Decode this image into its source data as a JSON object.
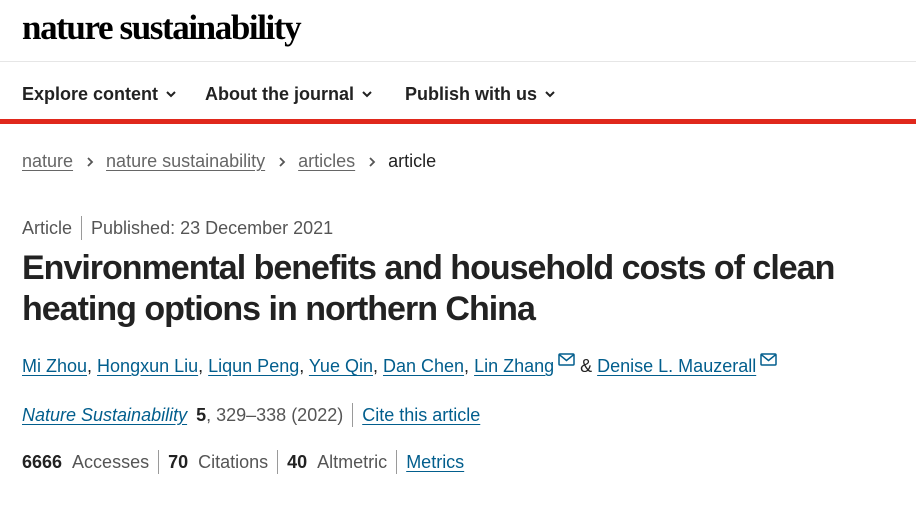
{
  "brand": {
    "logo": "nature sustainability"
  },
  "nav": {
    "items": [
      {
        "label": "Explore content"
      },
      {
        "label": "About the journal"
      },
      {
        "label": "Publish with us"
      }
    ]
  },
  "breadcrumb": {
    "items": [
      "nature",
      "nature sustainability",
      "articles"
    ],
    "current": "article"
  },
  "article": {
    "type": "Article",
    "published": "Published: 23 December 2021",
    "title": "Environmental benefits and household costs of clean heating options in northern China",
    "authors": [
      {
        "name": "Mi Zhou",
        "after": ", "
      },
      {
        "name": "Hongxun Liu",
        "after": ", "
      },
      {
        "name": "Liqun Peng",
        "after": ", "
      },
      {
        "name": "Yue Qin",
        "after": ", "
      },
      {
        "name": "Dan Chen",
        "after": ", "
      },
      {
        "name": "Lin Zhang",
        "after": " & "
      },
      {
        "name": "Denise L. Mauzerall",
        "after": ""
      }
    ],
    "author_amp": "&"
  },
  "citation": {
    "journal": "Nature Sustainability",
    "volume": "5",
    "pages": ", 329–338 (2022)",
    "cite_label": "Cite this article"
  },
  "metrics": {
    "accesses_value": "6666",
    "accesses_label": "Accesses",
    "citations_value": "70",
    "citations_label": "Citations",
    "altmetric_value": "40",
    "altmetric_label": "Altmetric",
    "metrics_link": "Metrics"
  },
  "colors": {
    "accent_red": "#e0281c",
    "link_blue": "#025e8d"
  },
  "icons": {
    "nav_chevron": "chevron-down-icon",
    "crumb_sep": "chevron-right-icon",
    "email": "email-icon"
  }
}
